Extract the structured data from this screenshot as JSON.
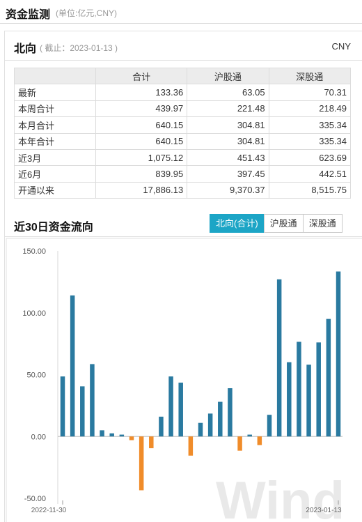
{
  "header": {
    "title": "资金监测",
    "unit": "(单位:亿元,CNY)"
  },
  "panel": {
    "title": "北向",
    "as_of": "( 截止：2023-01-13 )",
    "currency": "CNY"
  },
  "table": {
    "columns": [
      "",
      "合计",
      "沪股通",
      "深股通"
    ],
    "rows": [
      {
        "label": "最新",
        "total": "133.36",
        "sh": "63.05",
        "sz": "70.31"
      },
      {
        "label": "本周合计",
        "total": "439.97",
        "sh": "221.48",
        "sz": "218.49"
      },
      {
        "label": "本月合计",
        "total": "640.15",
        "sh": "304.81",
        "sz": "335.34"
      },
      {
        "label": "本年合计",
        "total": "640.15",
        "sh": "304.81",
        "sz": "335.34"
      },
      {
        "label": "近3月",
        "total": "1,075.12",
        "sh": "451.43",
        "sz": "623.69"
      },
      {
        "label": "近6月",
        "total": "839.95",
        "sh": "397.45",
        "sz": "442.51"
      },
      {
        "label": "开通以来",
        "total": "17,886.13",
        "sh": "9,370.37",
        "sz": "8,515.75"
      }
    ]
  },
  "chart_section": {
    "title": "近30日资金流向",
    "tabs": [
      "北向(合计)",
      "沪股通",
      "深股通"
    ],
    "active_tab": 0
  },
  "chart_data": {
    "type": "bar",
    "x_start_label": "2022-11-30",
    "x_end_label": "2023-01-13",
    "ylim": [
      -50,
      150
    ],
    "yticks": [
      "150.00",
      "100.00",
      "50.00",
      "0.00",
      "-50.00"
    ],
    "positive_color": "#2a7aa0",
    "negative_color": "#f08c2a",
    "values": [
      48.5,
      114.0,
      40.5,
      58.5,
      5.0,
      2.5,
      1.5,
      -3.0,
      -43.5,
      -9.5,
      16.0,
      48.5,
      43.5,
      -15.5,
      11.0,
      18.5,
      28.0,
      39.0,
      -11.5,
      1.5,
      -7.0,
      17.5,
      127.0,
      60.0,
      76.5,
      58.0,
      76.0,
      95.0,
      133.36
    ]
  },
  "watermark": "Wind"
}
